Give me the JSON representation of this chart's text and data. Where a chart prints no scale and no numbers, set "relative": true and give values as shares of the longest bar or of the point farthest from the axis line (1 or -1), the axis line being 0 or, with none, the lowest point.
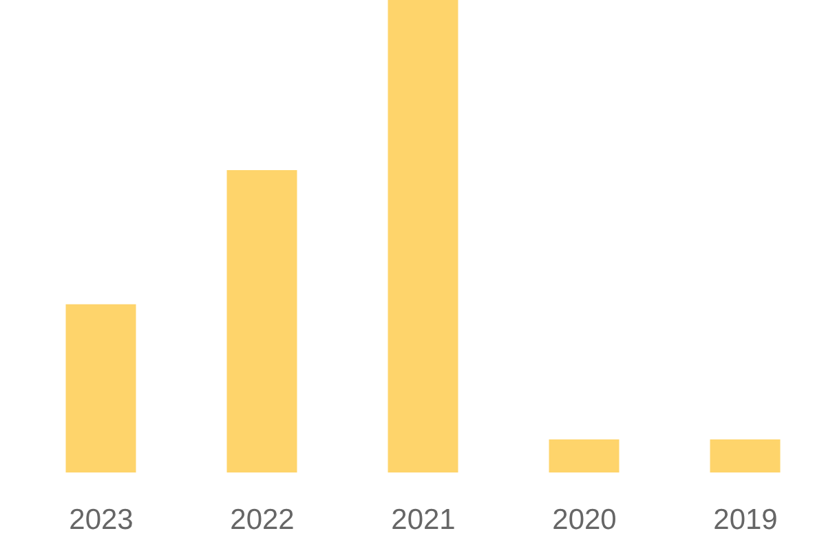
{
  "chart_data": {
    "type": "bar",
    "relative": true,
    "categories": [
      "2023",
      "2022",
      "2021",
      "2020",
      "2019"
    ],
    "values": [
      0.356,
      0.64,
      1,
      0.07,
      0.07
    ],
    "color": "#fed46b"
  }
}
